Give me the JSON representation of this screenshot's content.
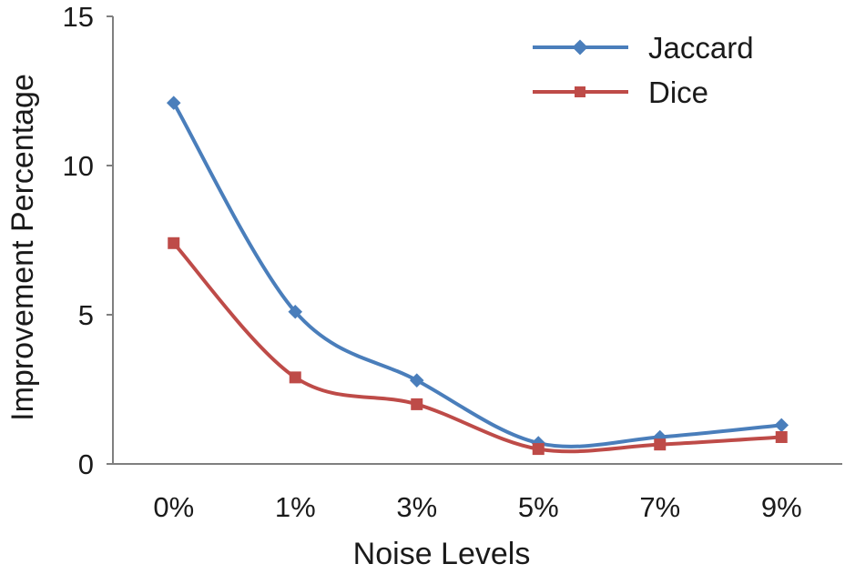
{
  "chart_data": {
    "type": "line",
    "title": "",
    "xlabel": "Noise Levels",
    "ylabel": "Improvement Percentage",
    "categories": [
      "0%",
      "1%",
      "3%",
      "5%",
      "7%",
      "9%"
    ],
    "ylim": [
      0,
      15
    ],
    "yticks": [
      "0",
      "5",
      "10",
      "15"
    ],
    "grid": false,
    "legend_position": "top-right",
    "series": [
      {
        "name": "Jaccard",
        "marker": "diamond",
        "color": "#4a7ebb",
        "values": [
          12.1,
          5.1,
          2.8,
          0.7,
          0.9,
          1.3
        ]
      },
      {
        "name": "Dice",
        "marker": "square",
        "color": "#be4b48",
        "values": [
          7.4,
          2.9,
          2.0,
          0.5,
          0.65,
          0.9
        ]
      }
    ]
  }
}
